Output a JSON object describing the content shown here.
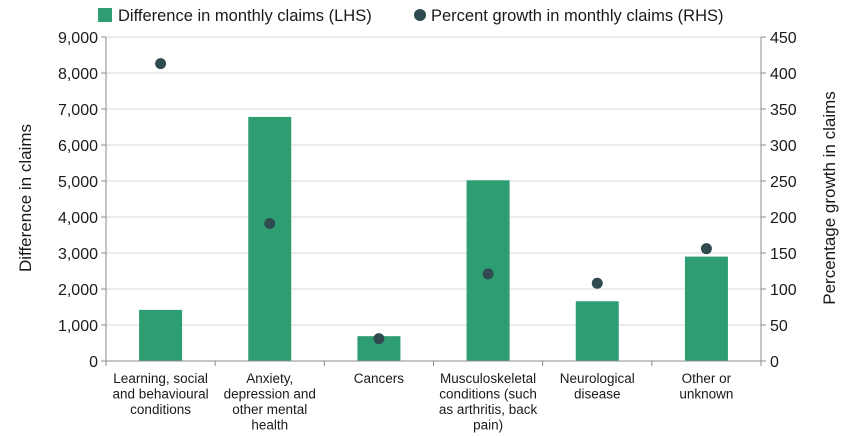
{
  "chart_data": {
    "type": "bar",
    "categories": [
      [
        "Learning, social",
        "and behavioural",
        "conditions"
      ],
      [
        "Anxiety,",
        "depression and",
        "other mental",
        "health"
      ],
      [
        "Cancers"
      ],
      [
        "Musculoskeletal",
        "conditions (such",
        "as arthritis, back",
        "pain)"
      ],
      [
        "Neurological",
        "disease"
      ],
      [
        "Other or",
        "unknown"
      ]
    ],
    "series": [
      {
        "name": "Difference in monthly claims (LHS)",
        "type": "bar",
        "axis": "left",
        "color": "#2e9e72",
        "values": [
          1420,
          6780,
          690,
          5020,
          1660,
          2900
        ]
      },
      {
        "name": "Percent growth in monthly claims (RHS)",
        "type": "scatter",
        "axis": "right",
        "color": "#2f4b4f",
        "values": [
          413,
          191,
          31,
          121,
          108,
          156
        ]
      }
    ],
    "ylabel": "Difference in claims",
    "y2label": "Percentage growth in claims",
    "ylim": [
      0,
      9000
    ],
    "y2lim": [
      0,
      450
    ],
    "yticks": [
      "0",
      "1,000",
      "2,000",
      "3,000",
      "4,000",
      "5,000",
      "6,000",
      "7,000",
      "8,000",
      "9,000"
    ],
    "y2ticks": [
      "0",
      "50",
      "100",
      "150",
      "200",
      "250",
      "300",
      "350",
      "400",
      "450"
    ],
    "legend_position": "top"
  }
}
